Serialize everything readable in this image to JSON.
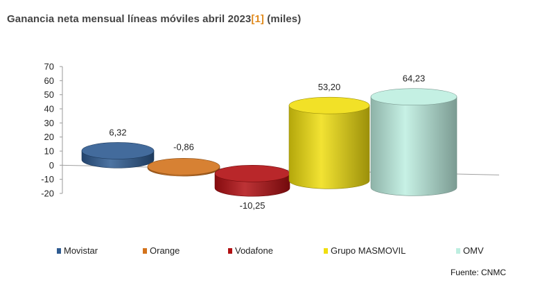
{
  "title": {
    "main": "Ganancia neta mensual líneas móviles abril 2023",
    "ref": "[1]",
    "unit": " (miles)"
  },
  "source": "Fuente: CNMC",
  "chart_data": {
    "type": "bar",
    "style": "3d-cylinder",
    "categories": [
      "Movistar",
      "Orange",
      "Vodafone",
      "Grupo MASMOVIL",
      "OMV"
    ],
    "values": [
      6.32,
      -0.86,
      -10.25,
      53.2,
      64.23
    ],
    "value_labels": [
      "6,32",
      "-0,86",
      "-10,25",
      "53,20",
      "64,23"
    ],
    "colors": [
      "#2e5b91",
      "#d3731c",
      "#b10f12",
      "#f0de0f",
      "#bdeee0"
    ],
    "yticks": [
      "70",
      "60",
      "50",
      "40",
      "30",
      "20",
      "10",
      "0",
      "-10",
      "-20"
    ],
    "ylim": [
      -20,
      70
    ],
    "ystep": 10,
    "legend_position": "bottom",
    "grid": false
  }
}
